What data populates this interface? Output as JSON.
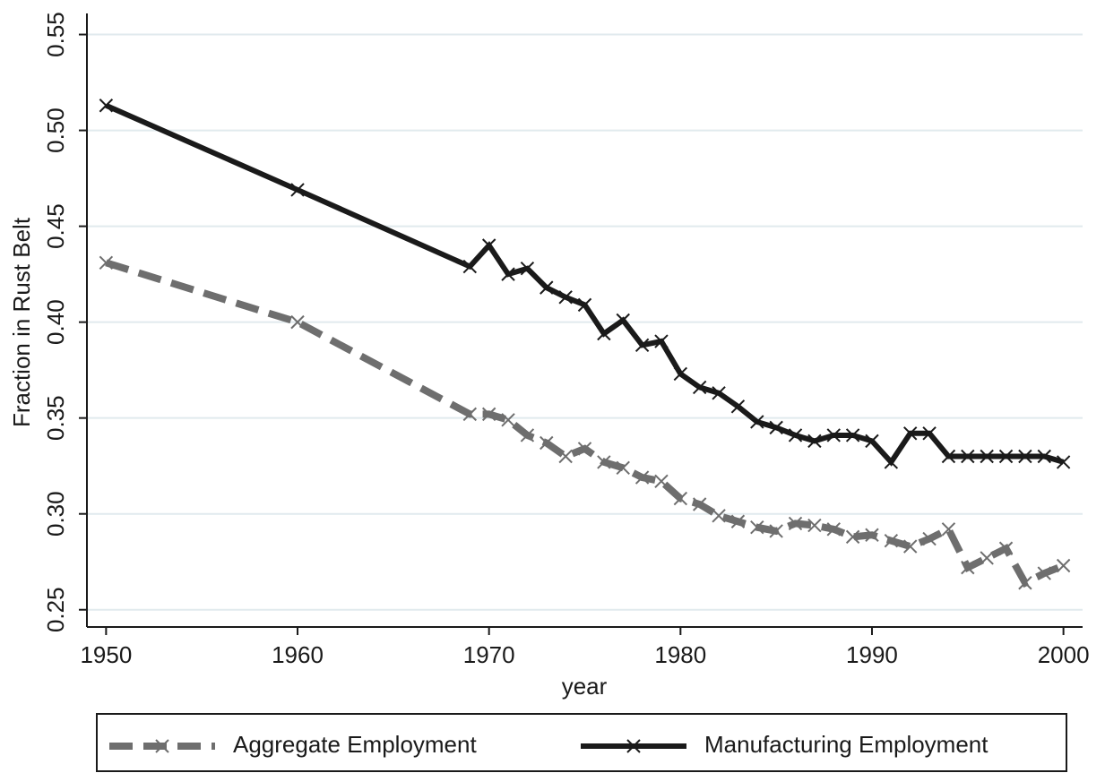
{
  "chart_data": {
    "type": "line",
    "x_label": "year",
    "y_label": "Fraction in Rust Belt",
    "x": [
      1950,
      1960,
      1969,
      1970,
      1971,
      1972,
      1973,
      1974,
      1975,
      1976,
      1977,
      1978,
      1979,
      1980,
      1981,
      1982,
      1983,
      1984,
      1985,
      1986,
      1987,
      1988,
      1989,
      1990,
      1991,
      1992,
      1993,
      1994,
      1995,
      1996,
      1997,
      1998,
      1999,
      2000
    ],
    "series": [
      {
        "name": "Aggregate Employment",
        "color": "#6e6e6e",
        "dashed": true,
        "values": [
          0.431,
          0.4,
          0.352,
          0.352,
          0.349,
          0.341,
          0.337,
          0.33,
          0.334,
          0.327,
          0.324,
          0.319,
          0.317,
          0.308,
          0.305,
          0.299,
          0.296,
          0.293,
          0.291,
          0.295,
          0.294,
          0.292,
          0.288,
          0.289,
          0.286,
          0.283,
          0.287,
          0.292,
          0.272,
          0.277,
          0.282,
          0.264,
          0.269,
          0.273
        ]
      },
      {
        "name": "Manufacturing Employment",
        "color": "#1a1a1a",
        "dashed": false,
        "values": [
          0.513,
          0.469,
          0.429,
          0.44,
          0.425,
          0.428,
          0.418,
          0.413,
          0.409,
          0.394,
          0.401,
          0.388,
          0.39,
          0.373,
          0.366,
          0.363,
          0.356,
          0.348,
          0.345,
          0.341,
          0.338,
          0.341,
          0.341,
          0.338,
          0.327,
          0.342,
          0.342,
          0.33,
          0.33,
          0.33,
          0.33,
          0.33,
          0.33,
          0.327
        ]
      }
    ],
    "xlim": [
      1949,
      2001
    ],
    "ylim": [
      0.241,
      0.561
    ],
    "xticks": [
      1950,
      1960,
      1970,
      1980,
      1990,
      2000
    ],
    "yticks": [
      0.25,
      {
        "value": 0.3,
        "label": "0.30"
      },
      0.35,
      {
        "value": 0.4,
        "label": "0.40"
      },
      0.45,
      {
        "value": 0.5,
        "label": "0.50"
      },
      0.55
    ],
    "grid": true,
    "legend": "bottom"
  }
}
